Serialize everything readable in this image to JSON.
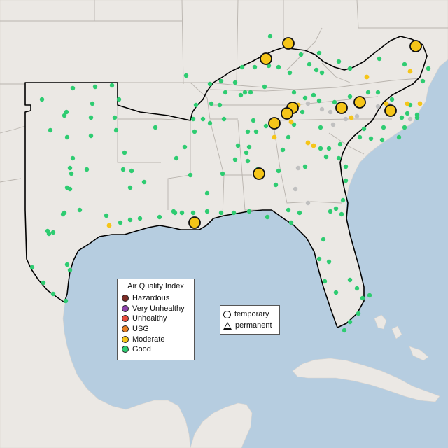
{
  "colors": {
    "water": "#b6cde0",
    "land": "#ebe8e4",
    "land_edge": "#d9d4ce",
    "state_border": "#b9b4ae",
    "region_outline": "#000000",
    "good": "#2ecc71",
    "moderate": "#f5c518",
    "usg": "#e67e22",
    "unhealthy": "#e74c3c",
    "very_unhealthy": "#8e44ad",
    "hazardous": "#7b2d26",
    "no_data": "#c0c0c0"
  },
  "legend": {
    "title": "Air Quality Index",
    "categories": [
      {
        "label": "Hazardous",
        "color": "#7b2d26"
      },
      {
        "label": "Very Unhealthy",
        "color": "#8e44ad"
      },
      {
        "label": "Unhealthy",
        "color": "#e74c3c"
      },
      {
        "label": "USG",
        "color": "#e67e22"
      },
      {
        "label": "Moderate",
        "color": "#f5c518"
      },
      {
        "label": "Good",
        "color": "#2ecc71"
      }
    ]
  },
  "type_legend": {
    "temporary": "temporary",
    "permanent": "permanent"
  }
}
